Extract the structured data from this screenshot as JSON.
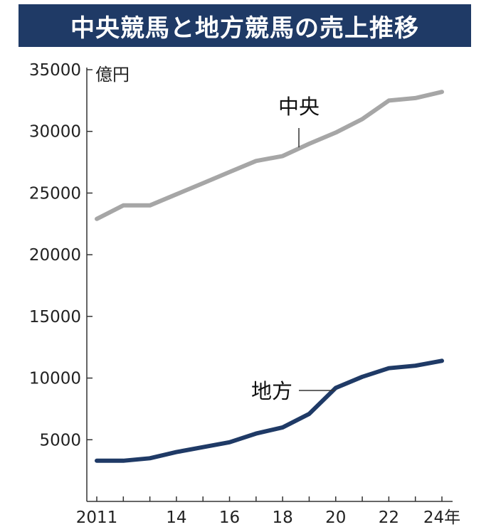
{
  "chart_data": {
    "type": "line",
    "title": "中央競馬と地方競馬の売上推移",
    "ylabel": "億円",
    "xlabel": "",
    "x": [
      2011,
      2012,
      2013,
      2014,
      2015,
      2016,
      2017,
      2018,
      2019,
      2020,
      2021,
      2022,
      2023,
      2024
    ],
    "xticks": [
      {
        "value": 2011,
        "label": "2011"
      },
      {
        "value": 2014,
        "label": "14"
      },
      {
        "value": 2016,
        "label": "16"
      },
      {
        "value": 2018,
        "label": "18"
      },
      {
        "value": 2020,
        "label": "20"
      },
      {
        "value": 2022,
        "label": "22"
      },
      {
        "value": 2024,
        "label": "24年"
      }
    ],
    "ylim": [
      0,
      35000
    ],
    "yticks": [
      {
        "value": 5000,
        "label": "5000"
      },
      {
        "value": 10000,
        "label": "10000"
      },
      {
        "value": 15000,
        "label": "15000"
      },
      {
        "value": 20000,
        "label": "20000"
      },
      {
        "value": 25000,
        "label": "25000"
      },
      {
        "value": 30000,
        "label": "30000"
      },
      {
        "value": 35000,
        "label": "35000"
      }
    ],
    "grid": false,
    "series": [
      {
        "name": "中央",
        "color": "#a6a6a6",
        "values": [
          22900,
          24000,
          24000,
          24900,
          25800,
          26700,
          27600,
          28000,
          29000,
          29900,
          31000,
          32500,
          32700,
          33200
        ]
      },
      {
        "name": "地方",
        "color": "#1f3a66",
        "values": [
          3300,
          3300,
          3500,
          4000,
          4400,
          4800,
          5500,
          6000,
          7100,
          9200,
          10100,
          10800,
          11000,
          11400
        ]
      }
    ]
  }
}
